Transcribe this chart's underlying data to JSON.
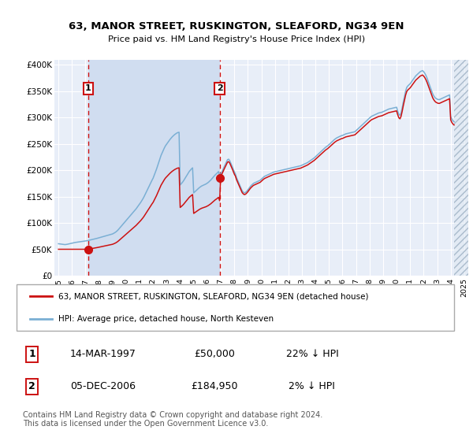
{
  "title1": "63, MANOR STREET, RUSKINGTON, SLEAFORD, NG34 9EN",
  "title2": "Price paid vs. HM Land Registry's House Price Index (HPI)",
  "ylabel_ticks": [
    "£0",
    "£50K",
    "£100K",
    "£150K",
    "£200K",
    "£250K",
    "£300K",
    "£350K",
    "£400K"
  ],
  "ytick_vals": [
    0,
    50000,
    100000,
    150000,
    200000,
    250000,
    300000,
    350000,
    400000
  ],
  "ylim": [
    0,
    410000
  ],
  "xlim_start": 1994.7,
  "xlim_end": 2025.3,
  "background_color": "#ffffff",
  "plot_bg_color": "#e8eef8",
  "shade_between_color": "#d0ddf0",
  "grid_color": "#ffffff",
  "hpi_color": "#7aafd4",
  "price_color": "#cc1111",
  "transaction1_year": 1997.2,
  "transaction1_price": 50000,
  "transaction2_year": 2006.92,
  "transaction2_price": 184950,
  "legend_label1": "63, MANOR STREET, RUSKINGTON, SLEAFORD, NG34 9EN (detached house)",
  "legend_label2": "HPI: Average price, detached house, North Kesteven",
  "annotation1_label": "1",
  "annotation1_date": "14-MAR-1997",
  "annotation1_price": "£50,000",
  "annotation1_hpi": "22% ↓ HPI",
  "annotation2_label": "2",
  "annotation2_date": "05-DEC-2006",
  "annotation2_price": "£184,950",
  "annotation2_hpi": "2% ↓ HPI",
  "footer": "Contains HM Land Registry data © Crown copyright and database right 2024.\nThis data is licensed under the Open Government Licence v3.0.",
  "hpi_raw_x": [
    1995.0,
    1995.083,
    1995.167,
    1995.25,
    1995.333,
    1995.417,
    1995.5,
    1995.583,
    1995.667,
    1995.75,
    1995.833,
    1995.917,
    1996.0,
    1996.083,
    1996.167,
    1996.25,
    1996.333,
    1996.417,
    1996.5,
    1996.583,
    1996.667,
    1996.75,
    1996.833,
    1996.917,
    1997.0,
    1997.083,
    1997.167,
    1997.25,
    1997.333,
    1997.417,
    1997.5,
    1997.583,
    1997.667,
    1997.75,
    1997.833,
    1997.917,
    1998.0,
    1998.083,
    1998.167,
    1998.25,
    1998.333,
    1998.417,
    1998.5,
    1998.583,
    1998.667,
    1998.75,
    1998.833,
    1998.917,
    1999.0,
    1999.083,
    1999.167,
    1999.25,
    1999.333,
    1999.417,
    1999.5,
    1999.583,
    1999.667,
    1999.75,
    1999.833,
    1999.917,
    2000.0,
    2000.083,
    2000.167,
    2000.25,
    2000.333,
    2000.417,
    2000.5,
    2000.583,
    2000.667,
    2000.75,
    2000.833,
    2000.917,
    2001.0,
    2001.083,
    2001.167,
    2001.25,
    2001.333,
    2001.417,
    2001.5,
    2001.583,
    2001.667,
    2001.75,
    2001.833,
    2001.917,
    2002.0,
    2002.083,
    2002.167,
    2002.25,
    2002.333,
    2002.417,
    2002.5,
    2002.583,
    2002.667,
    2002.75,
    2002.833,
    2002.917,
    2003.0,
    2003.083,
    2003.167,
    2003.25,
    2003.333,
    2003.417,
    2003.5,
    2003.583,
    2003.667,
    2003.75,
    2003.833,
    2003.917,
    2004.0,
    2004.083,
    2004.167,
    2004.25,
    2004.333,
    2004.417,
    2004.5,
    2004.583,
    2004.667,
    2004.75,
    2004.833,
    2004.917,
    2005.0,
    2005.083,
    2005.167,
    2005.25,
    2005.333,
    2005.417,
    2005.5,
    2005.583,
    2005.667,
    2005.75,
    2005.833,
    2005.917,
    2006.0,
    2006.083,
    2006.167,
    2006.25,
    2006.333,
    2006.417,
    2006.5,
    2006.583,
    2006.667,
    2006.75,
    2006.833,
    2006.917,
    2007.0,
    2007.083,
    2007.167,
    2007.25,
    2007.333,
    2007.417,
    2007.5,
    2007.583,
    2007.667,
    2007.75,
    2007.833,
    2007.917,
    2008.0,
    2008.083,
    2008.167,
    2008.25,
    2008.333,
    2008.417,
    2008.5,
    2008.583,
    2008.667,
    2008.75,
    2008.833,
    2008.917,
    2009.0,
    2009.083,
    2009.167,
    2009.25,
    2009.333,
    2009.417,
    2009.5,
    2009.583,
    2009.667,
    2009.75,
    2009.833,
    2009.917,
    2010.0,
    2010.083,
    2010.167,
    2010.25,
    2010.333,
    2010.417,
    2010.5,
    2010.583,
    2010.667,
    2010.75,
    2010.833,
    2010.917,
    2011.0,
    2011.083,
    2011.167,
    2011.25,
    2011.333,
    2011.417,
    2011.5,
    2011.583,
    2011.667,
    2011.75,
    2011.833,
    2011.917,
    2012.0,
    2012.083,
    2012.167,
    2012.25,
    2012.333,
    2012.417,
    2012.5,
    2012.583,
    2012.667,
    2012.75,
    2012.833,
    2012.917,
    2013.0,
    2013.083,
    2013.167,
    2013.25,
    2013.333,
    2013.417,
    2013.5,
    2013.583,
    2013.667,
    2013.75,
    2013.833,
    2013.917,
    2014.0,
    2014.083,
    2014.167,
    2014.25,
    2014.333,
    2014.417,
    2014.5,
    2014.583,
    2014.667,
    2014.75,
    2014.833,
    2014.917,
    2015.0,
    2015.083,
    2015.167,
    2015.25,
    2015.333,
    2015.417,
    2015.5,
    2015.583,
    2015.667,
    2015.75,
    2015.833,
    2015.917,
    2016.0,
    2016.083,
    2016.167,
    2016.25,
    2016.333,
    2016.417,
    2016.5,
    2016.583,
    2016.667,
    2016.75,
    2016.833,
    2016.917,
    2017.0,
    2017.083,
    2017.167,
    2017.25,
    2017.333,
    2017.417,
    2017.5,
    2017.583,
    2017.667,
    2017.75,
    2017.833,
    2017.917,
    2018.0,
    2018.083,
    2018.167,
    2018.25,
    2018.333,
    2018.417,
    2018.5,
    2018.583,
    2018.667,
    2018.75,
    2018.833,
    2018.917,
    2019.0,
    2019.083,
    2019.167,
    2019.25,
    2019.333,
    2019.417,
    2019.5,
    2019.583,
    2019.667,
    2019.75,
    2019.833,
    2019.917,
    2020.0,
    2020.083,
    2020.167,
    2020.25,
    2020.333,
    2020.417,
    2020.5,
    2020.583,
    2020.667,
    2020.75,
    2020.833,
    2020.917,
    2021.0,
    2021.083,
    2021.167,
    2021.25,
    2021.333,
    2021.417,
    2021.5,
    2021.583,
    2021.667,
    2021.75,
    2021.833,
    2021.917,
    2022.0,
    2022.083,
    2022.167,
    2022.25,
    2022.333,
    2022.417,
    2022.5,
    2022.583,
    2022.667,
    2022.75,
    2022.833,
    2022.917,
    2023.0,
    2023.083,
    2023.167,
    2023.25,
    2023.333,
    2023.417,
    2023.5,
    2023.583,
    2023.667,
    2023.75,
    2023.833,
    2023.917,
    2024.0,
    2024.083,
    2024.167,
    2024.25
  ],
  "hpi_raw_y": [
    60500,
    60200,
    59900,
    59600,
    59300,
    59100,
    58900,
    59200,
    59600,
    60100,
    60600,
    61100,
    61600,
    62100,
    62600,
    63000,
    63300,
    63600,
    63900,
    64200,
    64500,
    64800,
    65100,
    65400,
    65700,
    66100,
    66500,
    67000,
    67500,
    68000,
    68500,
    69000,
    69500,
    70000,
    70600,
    71200,
    71800,
    72400,
    73000,
    73600,
    74200,
    74800,
    75400,
    76000,
    76600,
    77200,
    77800,
    78400,
    79100,
    80200,
    81500,
    83000,
    84800,
    87000,
    89500,
    92000,
    94500,
    97000,
    99500,
    102000,
    104500,
    107000,
    109500,
    112000,
    114500,
    117000,
    119500,
    122000,
    124500,
    127000,
    130000,
    133000,
    136000,
    139000,
    142500,
    146000,
    150000,
    154500,
    159000,
    163500,
    168000,
    172500,
    177000,
    181000,
    185000,
    190500,
    196000,
    202000,
    208500,
    215000,
    221500,
    228000,
    233000,
    238000,
    242500,
    246500,
    249500,
    252500,
    255500,
    258500,
    261000,
    263500,
    265500,
    267500,
    269000,
    270500,
    271500,
    272000,
    172000,
    174500,
    177000,
    180000,
    183500,
    187000,
    190500,
    194000,
    197500,
    200000,
    202500,
    204500,
    157000,
    159000,
    161000,
    163000,
    165000,
    167000,
    168500,
    170000,
    171000,
    172000,
    173000,
    174000,
    175500,
    177000,
    179000,
    181000,
    183500,
    186000,
    188500,
    191000,
    193000,
    195000,
    197500,
    189000,
    193000,
    197000,
    201500,
    206500,
    211000,
    215500,
    220000,
    221000,
    218000,
    213000,
    208000,
    202500,
    197000,
    193000,
    186000,
    181000,
    176000,
    171000,
    166000,
    161000,
    158500,
    157000,
    158000,
    160000,
    162500,
    165500,
    168500,
    171000,
    173000,
    175000,
    176000,
    177000,
    178000,
    179000,
    180000,
    181000,
    183000,
    185000,
    187000,
    188500,
    189500,
    190500,
    191500,
    192500,
    193500,
    194500,
    195500,
    196500,
    197000,
    197500,
    198000,
    198500,
    199000,
    199500,
    200000,
    200500,
    201000,
    201500,
    202000,
    202500,
    203000,
    203500,
    204000,
    204500,
    205000,
    205500,
    206000,
    206500,
    207000,
    207500,
    208000,
    208500,
    209500,
    210500,
    211500,
    212500,
    213500,
    214500,
    216000,
    217500,
    219000,
    220500,
    222000,
    223500,
    225500,
    227500,
    229500,
    231500,
    233500,
    235500,
    237500,
    239500,
    241500,
    243500,
    245000,
    246500,
    248500,
    250500,
    252500,
    254500,
    256500,
    258500,
    260000,
    261500,
    262500,
    263500,
    264500,
    265500,
    266000,
    267000,
    268000,
    269000,
    269500,
    270000,
    270500,
    271000,
    271500,
    272000,
    272500,
    273000,
    275000,
    277000,
    279000,
    281000,
    283000,
    285000,
    287000,
    289000,
    291000,
    293000,
    295000,
    297000,
    299000,
    301000,
    302500,
    303500,
    304500,
    305500,
    306500,
    307500,
    308500,
    309000,
    309500,
    310000,
    311000,
    312000,
    313000,
    314000,
    315000,
    316000,
    316500,
    317000,
    317500,
    318000,
    318500,
    319000,
    319500,
    312000,
    306000,
    304000,
    309000,
    319000,
    330000,
    340000,
    350000,
    357000,
    360000,
    362000,
    364000,
    367000,
    370000,
    373000,
    376000,
    379000,
    381000,
    383000,
    385000,
    387000,
    388000,
    389000,
    387000,
    384000,
    380000,
    375000,
    369000,
    363000,
    357000,
    351000,
    345000,
    341000,
    338000,
    336000,
    335000,
    334000,
    334000,
    335000,
    336000,
    337000,
    338000,
    339000,
    340000,
    341000,
    342000,
    343000,
    302000,
    297000,
    294000,
    292000
  ]
}
